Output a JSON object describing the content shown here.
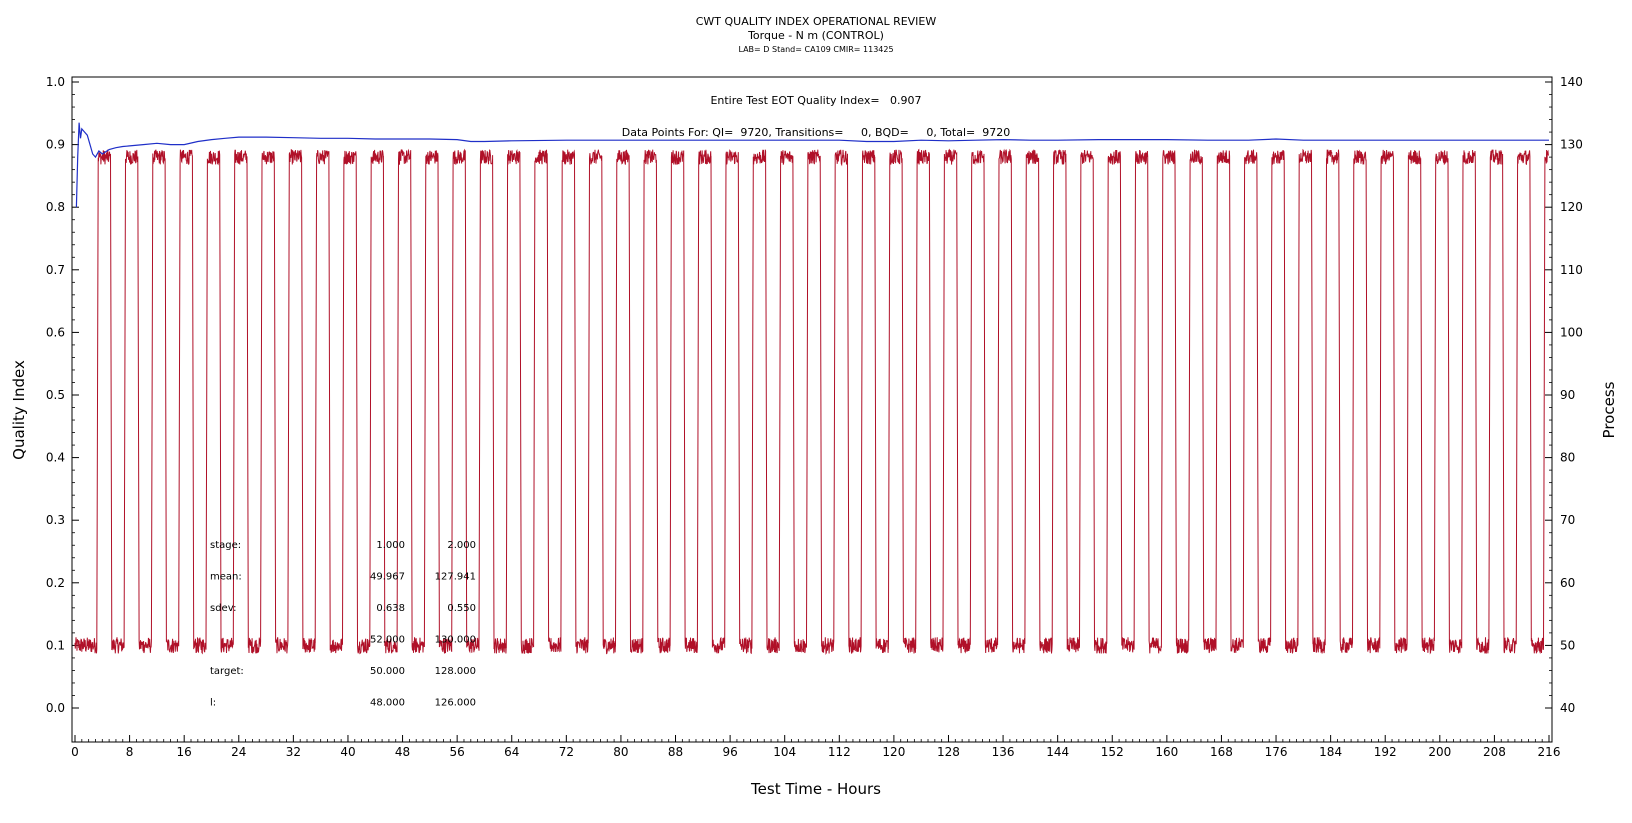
{
  "header": {
    "title": "CWT QUALITY INDEX OPERATIONAL REVIEW",
    "subtitle": "Torque - N m (CONTROL)",
    "info": "LAB= D Stand= CA109 CMIR= 113425"
  },
  "annotations": {
    "qi_line": "Entire Test EOT Quality Index=   0.907",
    "data_points_line": "Data Points For: QI=  9720, Transitions=     0, BQD=     0, Total=  9720"
  },
  "stats_table": {
    "rows": [
      {
        "label": "stage:",
        "v1": "1.000",
        "v2": "2.000"
      },
      {
        "label": "mean:",
        "v1": "49.967",
        "v2": "127.941"
      },
      {
        "label": "sdev:",
        "v1": "0.638",
        "v2": "0.550"
      },
      {
        "label": "",
        "v1": "52.000",
        "v2": "130.000"
      },
      {
        "label": "target:",
        "v1": "50.000",
        "v2": "128.000"
      },
      {
        "label": "l:",
        "v1": "48.000",
        "v2": "126.000"
      }
    ]
  },
  "colors": {
    "quality_index": "#1f2fc8",
    "process": "#b01028",
    "axis": "#000000"
  },
  "chart_data": {
    "type": "line",
    "title": "CWT QUALITY INDEX OPERATIONAL REVIEW",
    "xlabel": "Test Time - Hours",
    "ylabel_left": "Quality Index",
    "ylabel_right": "Process",
    "xlim": [
      0,
      216
    ],
    "ylim_left": [
      0.0,
      1.0
    ],
    "ylim_right": [
      40,
      140
    ],
    "x_ticks": [
      0,
      8,
      16,
      24,
      32,
      40,
      48,
      56,
      64,
      72,
      80,
      88,
      96,
      104,
      112,
      120,
      128,
      136,
      144,
      152,
      160,
      168,
      176,
      184,
      192,
      200,
      208,
      216
    ],
    "y_left_ticks": [
      "0.0",
      "0.1",
      "0.2",
      "0.3",
      "0.4",
      "0.5",
      "0.6",
      "0.7",
      "0.8",
      "0.9",
      "1.0"
    ],
    "y_right_ticks": [
      "40",
      "50",
      "60",
      "70",
      "80",
      "90",
      "100",
      "110",
      "120",
      "130",
      "140"
    ],
    "grid": false,
    "series": [
      {
        "axis": "left",
        "x": [
          0.2,
          0.4,
          0.6,
          0.8,
          1.0,
          1.4,
          1.8,
          2.2,
          2.6,
          3.0,
          3.5,
          4.0,
          5.0,
          6.0,
          7.0,
          8.0,
          10.0,
          12.0,
          14.0,
          16.0,
          18.0,
          20.0,
          22.0,
          24.0,
          28.0,
          32.0,
          36.0,
          40.0,
          44.0,
          48.0,
          52.0,
          56.0,
          58.0,
          60.0,
          64.0,
          72.0,
          80.0,
          88.0,
          96.0,
          104.0,
          112.0,
          116.0,
          120.0,
          124.0,
          128.0,
          132.0,
          136.0,
          140.0,
          144.0,
          150.0,
          156.0,
          160.0,
          166.0,
          172.0,
          176.0,
          180.0,
          184.0,
          192.0,
          200.0,
          208.0,
          216.0
        ],
        "y": [
          0.8,
          0.88,
          0.935,
          0.91,
          0.925,
          0.92,
          0.915,
          0.9,
          0.885,
          0.88,
          0.89,
          0.885,
          0.892,
          0.895,
          0.897,
          0.898,
          0.9,
          0.902,
          0.9,
          0.9,
          0.905,
          0.908,
          0.91,
          0.912,
          0.912,
          0.911,
          0.91,
          0.91,
          0.909,
          0.909,
          0.909,
          0.908,
          0.905,
          0.905,
          0.906,
          0.907,
          0.907,
          0.907,
          0.907,
          0.907,
          0.907,
          0.905,
          0.905,
          0.907,
          0.906,
          0.907,
          0.908,
          0.907,
          0.907,
          0.908,
          0.908,
          0.908,
          0.907,
          0.907,
          0.909,
          0.907,
          0.907,
          0.907,
          0.907,
          0.907,
          0.907
        ]
      },
      {
        "axis": "right",
        "cycle_hours": 4,
        "low_level": 50,
        "high_level": 128,
        "cycles": 54,
        "first_rise_hour": 3.2,
        "high_duration_hours": 1.8,
        "transition_hours": 0.2
      }
    ]
  }
}
